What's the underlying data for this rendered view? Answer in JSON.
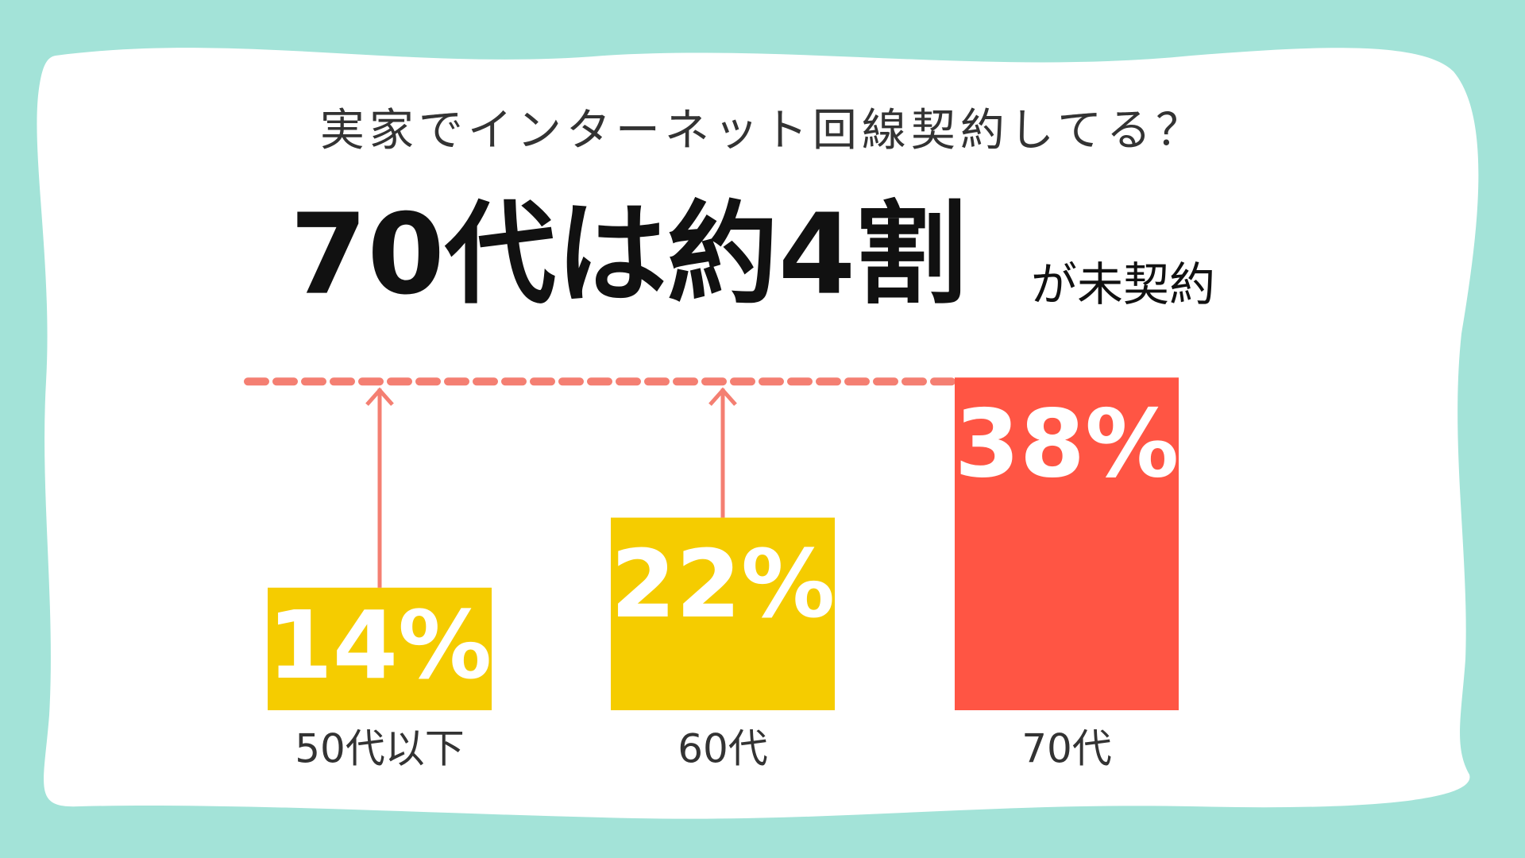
{
  "chart_data": {
    "type": "bar",
    "title": "実家でインターネット回線契約してる？",
    "headline": "70代は約4割",
    "headline_suffix": "が未契約",
    "categories": [
      "50代以下",
      "60代",
      "70代"
    ],
    "values": [
      14,
      22,
      38
    ],
    "value_labels": [
      "14%",
      "22%",
      "38%"
    ],
    "colors": [
      "#f5cc00",
      "#f5cc00",
      "#ff5544"
    ]
  }
}
